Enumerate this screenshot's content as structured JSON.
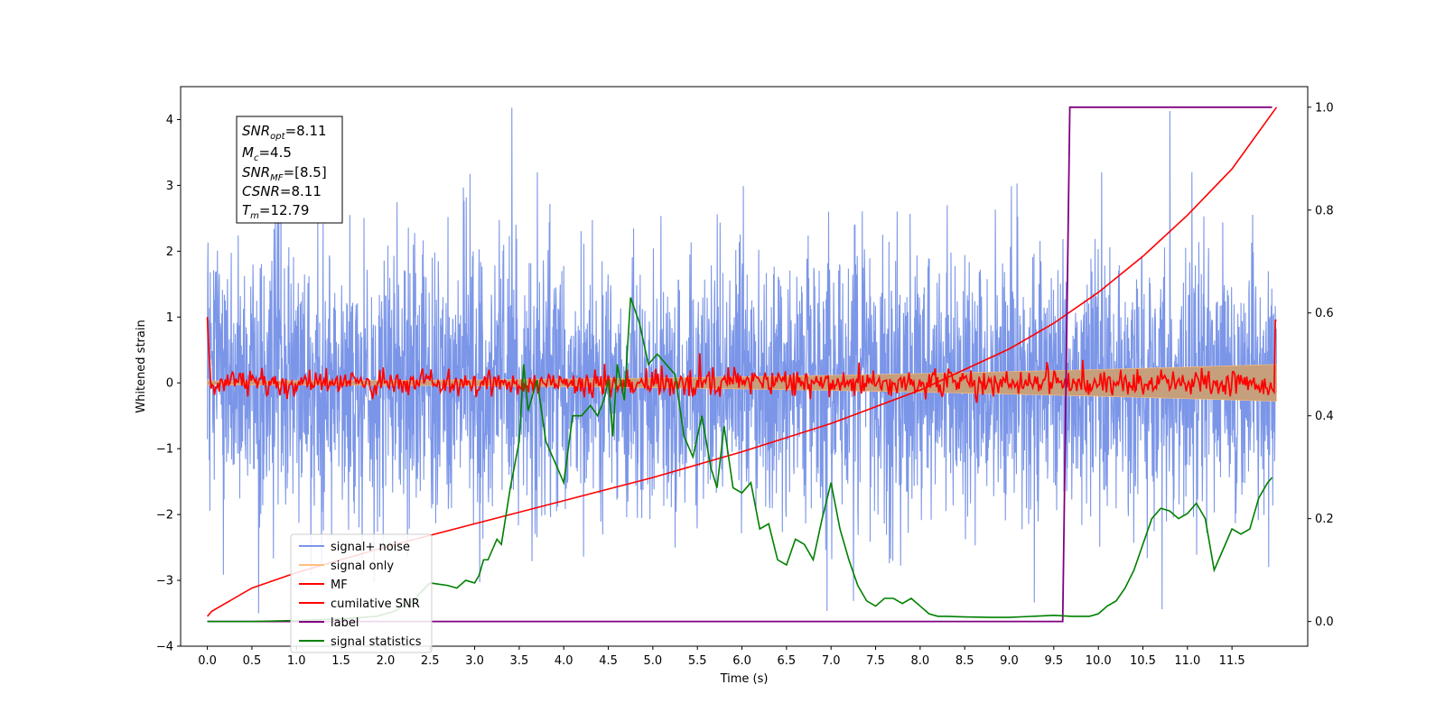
{
  "chart_data": {
    "type": "line",
    "xlabel": "Time (s)",
    "ylabel": "Whitened strain",
    "x_ticks": [
      "0.0",
      "0.5",
      "1.0",
      "1.5",
      "2.0",
      "2.5",
      "3.0",
      "3.5",
      "4.0",
      "4.5",
      "5.0",
      "5.5",
      "6.0",
      "6.5",
      "7.0",
      "7.5",
      "8.0",
      "8.5",
      "9.0",
      "9.5",
      "10.0",
      "10.5",
      "11.0",
      "11.5"
    ],
    "y_ticks": [
      "4",
      "3",
      "2",
      "1",
      "0",
      "−1",
      "−2",
      "−3",
      "−4"
    ],
    "y2_ticks": [
      "1.0",
      "0.8",
      "0.6",
      "0.4",
      "0.2",
      "0.0"
    ],
    "xlim": [
      -0.3,
      12.35
    ],
    "ylim": [
      -4.0,
      4.5
    ],
    "y2lim": [
      -0.048,
      1.04
    ],
    "annotation": {
      "snr_opt": "8.11",
      "mc": "4.5",
      "snr_mf": "[8.5]",
      "csnr": "8.11",
      "tm": "12.79"
    },
    "legend": {
      "placement": "lower-left",
      "entries": [
        "signal+ noise",
        "signal only",
        "MF",
        "cumilative SNR",
        "label",
        "signal statistics"
      ]
    },
    "colors": {
      "signal_noise": "#7b96e8",
      "signal_only": "#ffbf7a",
      "mf": "#ff0000",
      "cumulative_snr": "#ff0000",
      "label": "#800080",
      "signal_statistics": "#008000",
      "signal_band": "#c69f7c"
    },
    "series": [
      {
        "name": "signal+ noise",
        "axis": "left",
        "style": "noise",
        "x_range": [
          0.0,
          12.0
        ],
        "amplitude": 1.0,
        "peak_y": 4.18,
        "min_y": -3.5
      },
      {
        "name": "signal only",
        "axis": "left",
        "style": "band",
        "x_range": [
          0.0,
          12.0
        ],
        "envelope_start": 0.03,
        "envelope_end": 0.28
      },
      {
        "name": "MF",
        "axis": "left",
        "style": "jitter",
        "x_range": [
          0.0,
          12.0
        ],
        "start_y": 1.0,
        "end_y": 0.95,
        "amplitude": 0.1
      },
      {
        "name": "cumilative SNR",
        "axis": "right",
        "x": [
          0.0,
          0.05,
          0.5,
          1.0,
          2.0,
          3.0,
          4.0,
          5.0,
          6.0,
          7.0,
          8.0,
          9.0,
          9.5,
          10.0,
          10.5,
          11.0,
          11.5,
          12.0
        ],
        "y": [
          0.01,
          0.02,
          0.065,
          0.095,
          0.145,
          0.19,
          0.235,
          0.28,
          0.33,
          0.385,
          0.45,
          0.53,
          0.58,
          0.64,
          0.71,
          0.79,
          0.88,
          1.0
        ]
      },
      {
        "name": "label",
        "axis": "right",
        "x": [
          0.0,
          9.6,
          9.68,
          11.95
        ],
        "y": [
          0.0,
          0.0,
          1.0,
          1.0
        ]
      },
      {
        "name": "signal statistics",
        "axis": "right",
        "x": [
          0.0,
          0.5,
          1.0,
          1.5,
          1.9,
          2.1,
          2.3,
          2.5,
          2.7,
          2.8,
          2.9,
          3.0,
          3.05,
          3.1,
          3.15,
          3.25,
          3.3,
          3.4,
          3.5,
          3.55,
          3.6,
          3.7,
          3.8,
          3.9,
          4.0,
          4.1,
          4.2,
          4.3,
          4.38,
          4.45,
          4.5,
          4.55,
          4.6,
          4.68,
          4.75,
          4.85,
          4.95,
          5.05,
          5.15,
          5.25,
          5.35,
          5.45,
          5.55,
          5.65,
          5.72,
          5.8,
          5.9,
          6.0,
          6.1,
          6.2,
          6.3,
          6.4,
          6.5,
          6.6,
          6.7,
          6.8,
          6.9,
          7.0,
          7.1,
          7.2,
          7.3,
          7.4,
          7.5,
          7.6,
          7.7,
          7.8,
          7.9,
          8.0,
          8.1,
          8.2,
          8.3,
          8.5,
          8.8,
          9.0,
          9.5,
          9.7,
          9.9,
          10.0,
          10.1,
          10.2,
          10.3,
          10.4,
          10.5,
          10.6,
          10.7,
          10.8,
          10.9,
          11.0,
          11.1,
          11.2,
          11.3,
          11.4,
          11.5,
          11.6,
          11.7,
          11.8,
          11.9,
          11.95
        ],
        "y": [
          0.0,
          0.0,
          0.002,
          0.005,
          0.01,
          0.02,
          0.04,
          0.075,
          0.07,
          0.065,
          0.08,
          0.075,
          0.09,
          0.12,
          0.12,
          0.16,
          0.15,
          0.26,
          0.35,
          0.5,
          0.41,
          0.47,
          0.35,
          0.31,
          0.27,
          0.4,
          0.4,
          0.42,
          0.4,
          0.43,
          0.47,
          0.36,
          0.5,
          0.43,
          0.63,
          0.58,
          0.5,
          0.52,
          0.5,
          0.48,
          0.36,
          0.32,
          0.4,
          0.3,
          0.26,
          0.38,
          0.26,
          0.25,
          0.27,
          0.18,
          0.19,
          0.12,
          0.11,
          0.16,
          0.15,
          0.12,
          0.2,
          0.27,
          0.18,
          0.12,
          0.07,
          0.04,
          0.03,
          0.045,
          0.045,
          0.035,
          0.045,
          0.03,
          0.015,
          0.01,
          0.01,
          0.009,
          0.008,
          0.008,
          0.012,
          0.01,
          0.01,
          0.015,
          0.03,
          0.04,
          0.065,
          0.1,
          0.15,
          0.2,
          0.22,
          0.215,
          0.2,
          0.21,
          0.23,
          0.2,
          0.1,
          0.14,
          0.18,
          0.17,
          0.18,
          0.24,
          0.27,
          0.28
        ]
      }
    ]
  }
}
